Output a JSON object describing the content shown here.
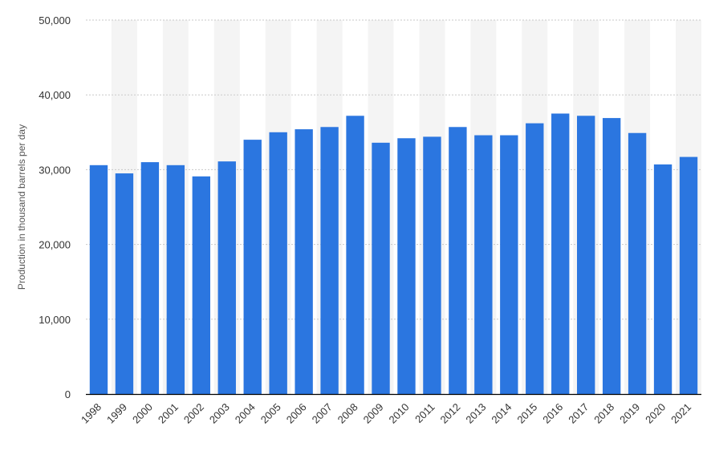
{
  "chart_data": {
    "type": "bar",
    "title": "",
    "xlabel": "",
    "ylabel": "Production in thousand barrels per day",
    "ylim": [
      0,
      50000
    ],
    "yticks": [
      0,
      10000,
      20000,
      30000,
      40000,
      50000
    ],
    "ytick_labels": [
      "0",
      "10,000",
      "20,000",
      "30,000",
      "40,000",
      "50,000"
    ],
    "grid": true,
    "categories": [
      "1998",
      "1999",
      "2000",
      "2001",
      "2002",
      "2003",
      "2004",
      "2005",
      "2006",
      "2007",
      "2008",
      "2009",
      "2010",
      "2011",
      "2012",
      "2013",
      "2014",
      "2015",
      "2016",
      "2017",
      "2018",
      "2019",
      "2020",
      "2021"
    ],
    "values": [
      30600,
      29500,
      31000,
      30600,
      29100,
      31100,
      34000,
      35000,
      35400,
      35700,
      37200,
      33600,
      34200,
      34400,
      35700,
      34600,
      34600,
      36200,
      37500,
      37200,
      36900,
      34900,
      30700,
      31700
    ],
    "colors": {
      "bar": "#2b76e0",
      "grid": "#c9c9c9",
      "band": "#f4f4f4",
      "axis": "#000000"
    }
  }
}
